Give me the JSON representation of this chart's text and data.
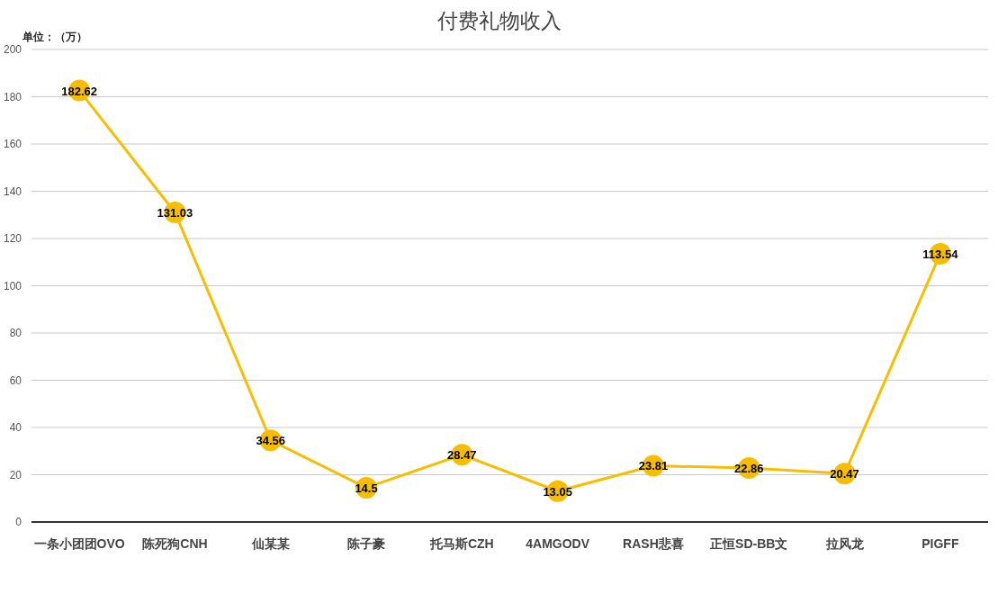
{
  "chart_data": {
    "type": "line",
    "title": "付费礼物收入",
    "annotations": [
      "单位：（万）"
    ],
    "categories": [
      "一条小团团OVO",
      "陈死狗CNH",
      "仙某某",
      "陈子豪",
      "托马斯CZH",
      "4AMGODV",
      "RASH悲喜",
      "正恒SD-BB文",
      "拉风龙",
      "PIGFF"
    ],
    "series": [
      {
        "color": "#f7bd00",
        "values": [
          182.62,
          131.03,
          34.56,
          14.5,
          28.47,
          13.05,
          23.81,
          22.86,
          20.47,
          113.54
        ]
      }
    ],
    "ylim": [
      0,
      200
    ],
    "yticks": [
      0,
      20,
      40,
      60,
      80,
      100,
      120,
      140,
      160,
      180,
      200
    ],
    "grid": "y",
    "marker": "circle",
    "line_style": "solid",
    "data_labels": true
  }
}
